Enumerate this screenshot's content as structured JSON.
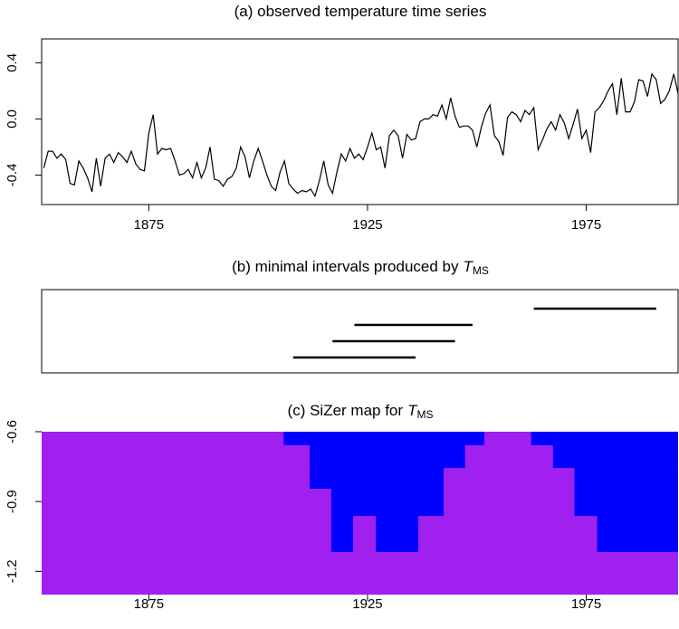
{
  "chart_data": [
    {
      "type": "line",
      "title": "(a) observed temperature time series",
      "x": [
        1851,
        1852,
        1853,
        1854,
        1855,
        1856,
        1857,
        1858,
        1859,
        1860,
        1861,
        1862,
        1863,
        1864,
        1865,
        1866,
        1867,
        1868,
        1869,
        1870,
        1871,
        1872,
        1873,
        1874,
        1875,
        1876,
        1877,
        1878,
        1879,
        1880,
        1881,
        1882,
        1883,
        1884,
        1885,
        1886,
        1887,
        1888,
        1889,
        1890,
        1891,
        1892,
        1893,
        1894,
        1895,
        1896,
        1897,
        1898,
        1899,
        1900,
        1901,
        1902,
        1903,
        1904,
        1905,
        1906,
        1907,
        1908,
        1909,
        1910,
        1911,
        1912,
        1913,
        1914,
        1915,
        1916,
        1917,
        1918,
        1919,
        1920,
        1921,
        1922,
        1923,
        1924,
        1925,
        1926,
        1927,
        1928,
        1929,
        1930,
        1931,
        1932,
        1933,
        1934,
        1935,
        1936,
        1937,
        1938,
        1939,
        1940,
        1941,
        1942,
        1943,
        1944,
        1945,
        1946,
        1947,
        1948,
        1949,
        1950,
        1951,
        1952,
        1953,
        1954,
        1955,
        1956,
        1957,
        1958,
        1959,
        1960,
        1961,
        1962,
        1963,
        1964,
        1965,
        1966,
        1967,
        1968,
        1969,
        1970,
        1971,
        1972,
        1973,
        1974,
        1975,
        1976,
        1977,
        1978,
        1979,
        1980,
        1981,
        1982,
        1983,
        1984,
        1985,
        1986,
        1987,
        1988,
        1989,
        1990,
        1991,
        1992,
        1993,
        1994,
        1995,
        1996
      ],
      "values": [
        -0.35,
        -0.23,
        -0.23,
        -0.28,
        -0.25,
        -0.29,
        -0.46,
        -0.47,
        -0.3,
        -0.35,
        -0.42,
        -0.52,
        -0.28,
        -0.48,
        -0.28,
        -0.25,
        -0.31,
        -0.24,
        -0.27,
        -0.31,
        -0.23,
        -0.32,
        -0.36,
        -0.37,
        -0.1,
        0.03,
        -0.25,
        -0.21,
        -0.22,
        -0.21,
        -0.3,
        -0.4,
        -0.39,
        -0.36,
        -0.42,
        -0.31,
        -0.42,
        -0.35,
        -0.2,
        -0.43,
        -0.44,
        -0.48,
        -0.43,
        -0.41,
        -0.35,
        -0.2,
        -0.27,
        -0.42,
        -0.3,
        -0.21,
        -0.3,
        -0.4,
        -0.48,
        -0.51,
        -0.38,
        -0.3,
        -0.46,
        -0.5,
        -0.53,
        -0.51,
        -0.52,
        -0.5,
        -0.55,
        -0.44,
        -0.3,
        -0.47,
        -0.53,
        -0.38,
        -0.25,
        -0.3,
        -0.21,
        -0.28,
        -0.25,
        -0.29,
        -0.2,
        -0.1,
        -0.22,
        -0.2,
        -0.35,
        -0.12,
        -0.08,
        -0.12,
        -0.28,
        -0.11,
        -0.15,
        -0.14,
        -0.02,
        0.0,
        0.0,
        0.03,
        0.02,
        0.1,
        0.0,
        0.15,
        0.02,
        -0.06,
        -0.05,
        -0.05,
        -0.08,
        -0.2,
        -0.06,
        0.04,
        0.1,
        -0.12,
        -0.16,
        -0.26,
        0.01,
        0.05,
        0.03,
        -0.02,
        0.06,
        0.03,
        0.08,
        -0.22,
        -0.15,
        -0.07,
        -0.02,
        -0.08,
        0.03,
        -0.03,
        -0.14,
        -0.04,
        0.07,
        -0.14,
        -0.08,
        -0.24,
        0.05,
        0.08,
        0.13,
        0.2,
        0.25,
        0.03,
        0.29,
        0.05,
        0.05,
        0.12,
        0.28,
        0.27,
        0.16,
        0.32,
        0.28,
        0.11,
        0.14,
        0.2,
        0.32,
        0.18
      ],
      "color": "#000000",
      "xlim": [
        1850.5,
        1996
      ],
      "ylim": [
        -0.61,
        0.57
      ],
      "xticks": [
        1875,
        1925,
        1975
      ],
      "yticks": [
        -0.4,
        {
          "value": 0,
          "label": "0.0"
        },
        0.4
      ]
    },
    {
      "type": "interval",
      "title": "(b) minimal intervals produced by",
      "title_math": "T",
      "title_sub": "MS",
      "intervals": [
        {
          "start": 1908,
          "end": 1936
        },
        {
          "start": 1917,
          "end": 1945
        },
        {
          "start": 1922,
          "end": 1949
        },
        {
          "start": 1963,
          "end": 1991
        }
      ],
      "color": "#000000",
      "xlim": [
        1850.5,
        1996
      ]
    },
    {
      "type": "heatmap",
      "title": "(c) SiZer map for",
      "title_math": "T",
      "title_sub": "MS",
      "background": "#a020f0",
      "xlim": [
        1850.5,
        1996
      ],
      "ylim": [
        -1.3,
        -0.6
      ],
      "xticks": [
        1875,
        1925,
        1975
      ],
      "yticks": [
        -1.2,
        -0.9,
        -0.6
      ],
      "regions": [
        {
          "x": [
            1905.8,
            1951.7
          ],
          "y": [
            -0.658,
            -0.6
          ],
          "color": "#0000ff"
        },
        {
          "x": [
            1911.8,
            1947.3
          ],
          "y": [
            -0.756,
            -0.658
          ],
          "color": "#0000ff"
        },
        {
          "x": [
            1911.8,
            1942.4
          ],
          "y": [
            -0.845,
            -0.756
          ],
          "color": "#0000ff"
        },
        {
          "x": [
            1916.7,
            1942.4
          ],
          "y": [
            -0.962,
            -0.845
          ],
          "color": "#0000ff"
        },
        {
          "x": [
            1916.7,
            1921.7
          ],
          "y": [
            -1.117,
            -0.962
          ],
          "color": "#0000ff"
        },
        {
          "x": [
            1926.9,
            1936.6
          ],
          "y": [
            -1.117,
            -0.962
          ],
          "color": "#0000ff"
        },
        {
          "x": [
            1962.4,
            1996
          ],
          "y": [
            -0.658,
            -0.6
          ],
          "color": "#0000ff"
        },
        {
          "x": [
            1967.4,
            1996
          ],
          "y": [
            -0.756,
            -0.658
          ],
          "color": "#0000ff"
        },
        {
          "x": [
            1972.3,
            1996
          ],
          "y": [
            -0.962,
            -0.756
          ],
          "color": "#0000ff"
        },
        {
          "x": [
            1977.5,
            1996
          ],
          "y": [
            -1.117,
            -0.962
          ],
          "color": "#0000ff"
        }
      ]
    }
  ]
}
